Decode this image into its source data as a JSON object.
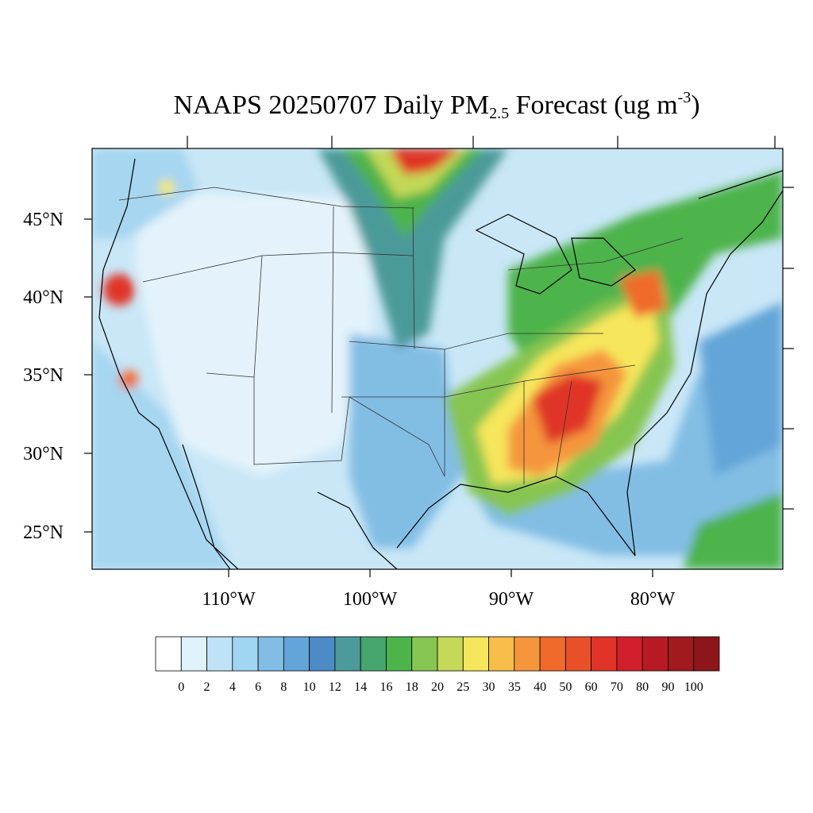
{
  "title": {
    "prefix": "NAAPS 20250707 Daily PM",
    "subscript": "2.5",
    "middle": " Forecast (ug m",
    "superscript": "-3",
    "suffix": ")"
  },
  "lat_labels": [
    "45°N",
    "40°N",
    "35°N",
    "30°N",
    "25°N"
  ],
  "lon_labels": [
    "110°W",
    "100°W",
    "90°W",
    "80°W"
  ],
  "colorbar": {
    "levels": [
      "0",
      "2",
      "4",
      "6",
      "8",
      "10",
      "12",
      "14",
      "16",
      "18",
      "20",
      "25",
      "30",
      "35",
      "40",
      "50",
      "60",
      "70",
      "80",
      "90",
      "100"
    ],
    "colors": [
      "#ffffff",
      "#e0f2fb",
      "#bfe3f6",
      "#a0d6f2",
      "#82bde4",
      "#63a5d8",
      "#4c8bc6",
      "#4c9a9a",
      "#45a56c",
      "#4db34b",
      "#86c551",
      "#c3d957",
      "#f6e65b",
      "#f7be4a",
      "#f5963c",
      "#f06a2c",
      "#e8502a",
      "#e03428",
      "#d11f2c",
      "#b81a24",
      "#a11a1e",
      "#8c1619"
    ]
  },
  "legend_icons": {
    "colorbar": "pm25-colorbar"
  }
}
